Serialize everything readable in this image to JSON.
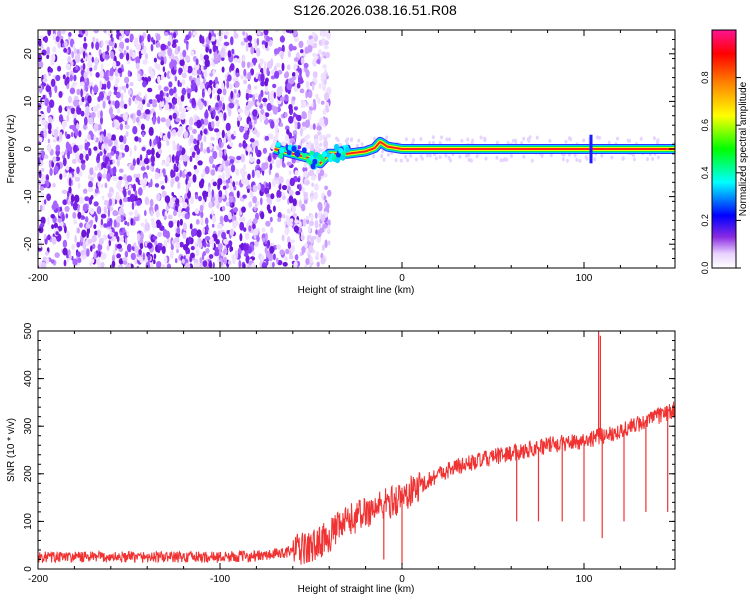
{
  "title": "S126.2026.038.16.51.R08",
  "chart_data": [
    {
      "type": "heatmap",
      "title": "",
      "xlabel": "Height of straight line (km)",
      "ylabel": "Frequency (Hz)",
      "xlim": [
        -200,
        150
      ],
      "ylim": [
        -25,
        25
      ],
      "xticks": [
        -200,
        -100,
        0,
        100
      ],
      "xtick_labels": [
        "-200",
        "-100",
        "0",
        "100"
      ],
      "yticks": [
        -20,
        -10,
        0,
        10,
        20
      ],
      "ytick_labels": [
        "-20",
        "-10",
        "0",
        "10",
        "20"
      ],
      "grid": false,
      "colorbar": {
        "label": "Normalized spectral amplitude",
        "range": [
          0,
          1
        ],
        "ticks": [
          0,
          0.2,
          0.4,
          0.6,
          0.8
        ],
        "tick_labels": [
          "0.0",
          "0.2",
          "0.4",
          "0.6",
          "0.8"
        ]
      },
      "ridge": {
        "x": [
          -70,
          -60,
          -50,
          -45,
          -40,
          -35,
          -30,
          -20,
          -15,
          -12,
          -8,
          0,
          20,
          50,
          100,
          150
        ],
        "y": [
          0,
          -1,
          -2,
          -3,
          -1,
          -1,
          -1,
          -0.5,
          0.2,
          1.5,
          0.5,
          0,
          0,
          0,
          0,
          0
        ]
      },
      "noise_region_x": [
        -200,
        -45
      ]
    },
    {
      "type": "line",
      "title": "",
      "xlabel": "Height of straight line (km)",
      "ylabel": "SNR (10 * v/v)",
      "xlim": [
        -200,
        150
      ],
      "ylim": [
        0,
        500
      ],
      "xticks": [
        -200,
        -100,
        0,
        100
      ],
      "xtick_labels": [
        "-200",
        "-100",
        "0",
        "100"
      ],
      "yticks": [
        0,
        100,
        200,
        300,
        400,
        500
      ],
      "ytick_labels": [
        "0",
        "100",
        "200",
        "300",
        "400",
        "500"
      ],
      "grid": false,
      "color": "#f03232",
      "trend": {
        "x": [
          -200,
          -150,
          -100,
          -75,
          -50,
          -40,
          -30,
          -20,
          -10,
          0,
          10,
          20,
          30,
          50,
          80,
          100,
          120,
          150
        ],
        "y": [
          25,
          25,
          25,
          28,
          45,
          70,
          100,
          120,
          135,
          150,
          175,
          200,
          215,
          235,
          260,
          270,
          290,
          335
        ]
      },
      "spikes": [
        {
          "x": -10,
          "y": 20
        },
        {
          "x": 0,
          "y": 10
        },
        {
          "x": 63,
          "y": 100
        },
        {
          "x": 75,
          "y": 100
        },
        {
          "x": 88,
          "y": 100
        },
        {
          "x": 100,
          "y": 100
        },
        {
          "x": 108,
          "y": 500
        },
        {
          "x": 109,
          "y": 490
        },
        {
          "x": 110,
          "y": 65
        },
        {
          "x": 122,
          "y": 100
        },
        {
          "x": 134,
          "y": 120
        },
        {
          "x": 146,
          "y": 120
        }
      ]
    }
  ]
}
